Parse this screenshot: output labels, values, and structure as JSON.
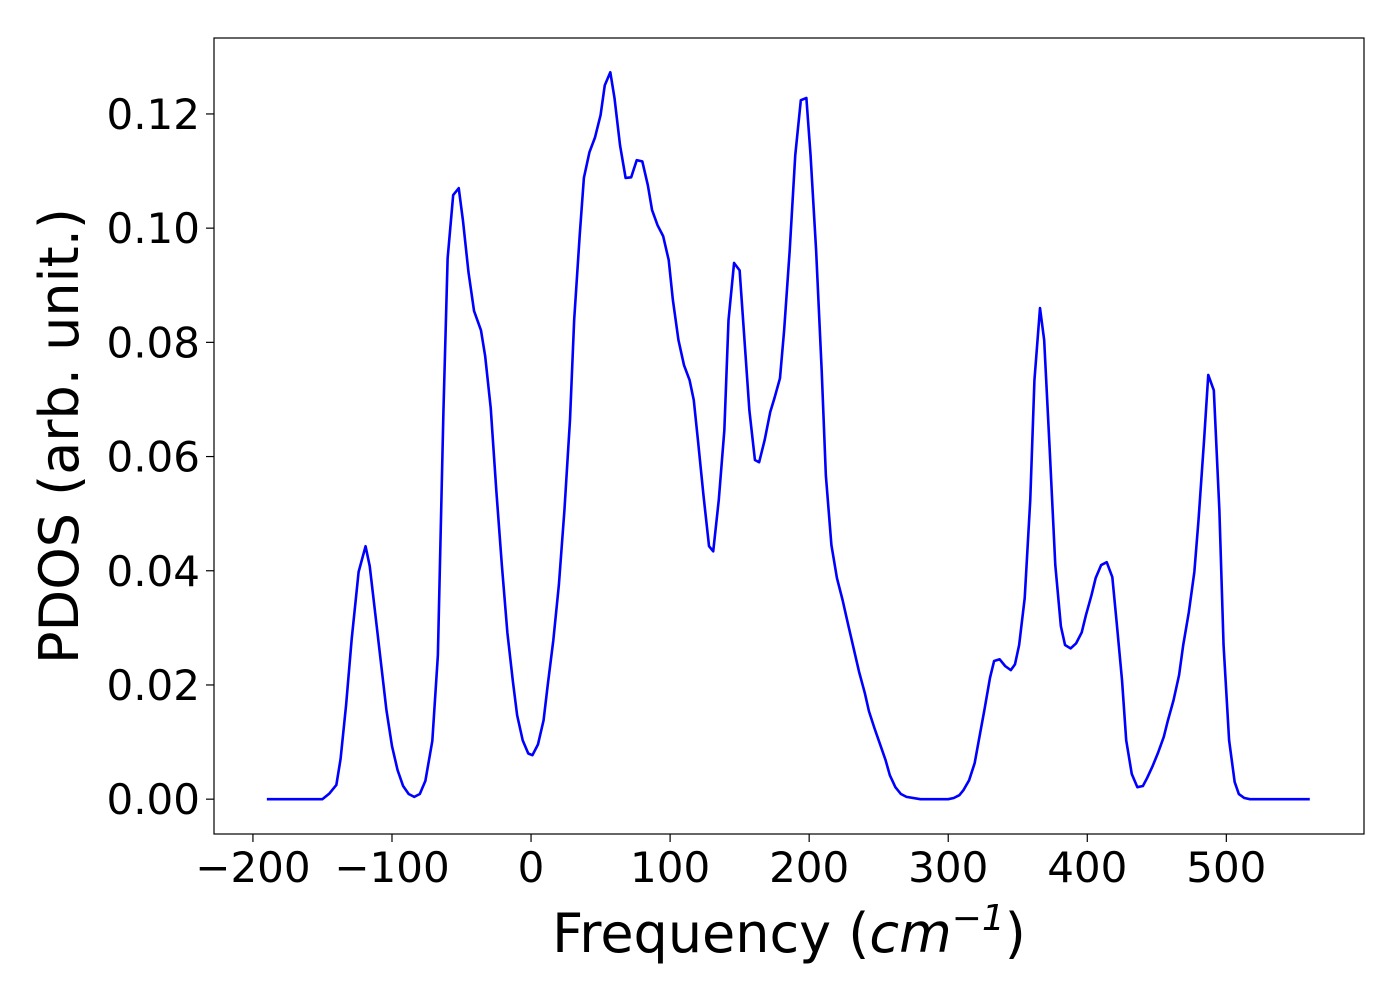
{
  "chart_data": {
    "type": "line",
    "xlabel": {
      "text": "Frequency (",
      "math": "cm",
      "sup": "−1",
      "close": ")"
    },
    "ylabel": "PDOS (arb. unit.)",
    "color": "#0000ff",
    "x": [
      -190,
      -170,
      -150,
      -145,
      -140,
      -137,
      -133,
      -129,
      -124,
      -119,
      -116,
      -112,
      -108,
      -104,
      -100,
      -96,
      -92,
      -88,
      -84,
      -80,
      -76,
      -71,
      -67,
      -63,
      -60,
      -56,
      -52,
      -49,
      -45,
      -41,
      -36,
      -33,
      -29,
      -25,
      -21,
      -17,
      -13,
      -10,
      -6,
      -2,
      1,
      5,
      9,
      12,
      16,
      20,
      24,
      28,
      31,
      35,
      38,
      42,
      46,
      50,
      53,
      57,
      60,
      64,
      68,
      72,
      76,
      80,
      84,
      87,
      91,
      95,
      99,
      102,
      106,
      110,
      114,
      117,
      120,
      124,
      128,
      131,
      135,
      139,
      142,
      146,
      150,
      153,
      157,
      161,
      164,
      168,
      172,
      175,
      179,
      182,
      186,
      190,
      194,
      198,
      201,
      205,
      209,
      212,
      216,
      220,
      224,
      228,
      232,
      236,
      240,
      243,
      247,
      251,
      255,
      258,
      262,
      266,
      270,
      280,
      290,
      300,
      304,
      308,
      311,
      315,
      319,
      322,
      326,
      330,
      333,
      337,
      341,
      345,
      348,
      351,
      355,
      359,
      362,
      366,
      369,
      373,
      377,
      381,
      384,
      388,
      392,
      396,
      399,
      403,
      406,
      410,
      414,
      418,
      421,
      425,
      428,
      432,
      436,
      440,
      443,
      447,
      451,
      455,
      458,
      462,
      466,
      469,
      473,
      477,
      480,
      484,
      487,
      491,
      495,
      498,
      502,
      506,
      509,
      513,
      517,
      530,
      545,
      560
    ],
    "values": [
      0,
      0,
      0,
      0.001,
      0.0025,
      0.007,
      0.0165,
      0.028,
      0.0398,
      0.0443,
      0.0408,
      0.0324,
      0.024,
      0.0156,
      0.0093,
      0.0051,
      0.0023,
      0.0009,
      0.0004,
      0.0009,
      0.0032,
      0.0102,
      0.0252,
      0.068,
      0.0947,
      0.1058,
      0.107,
      0.1014,
      0.0923,
      0.0855,
      0.0821,
      0.0776,
      0.0685,
      0.0541,
      0.041,
      0.0291,
      0.0205,
      0.0147,
      0.0103,
      0.008,
      0.0077,
      0.0096,
      0.0138,
      0.02,
      0.0278,
      0.0375,
      0.0506,
      0.0664,
      0.0839,
      0.0988,
      0.1088,
      0.1133,
      0.1159,
      0.1198,
      0.125,
      0.1273,
      0.1228,
      0.1145,
      0.1088,
      0.1089,
      0.1119,
      0.1117,
      0.1075,
      0.1032,
      0.1005,
      0.0986,
      0.0944,
      0.0874,
      0.0804,
      0.076,
      0.0734,
      0.0699,
      0.0629,
      0.0532,
      0.0443,
      0.0434,
      0.0524,
      0.0646,
      0.0839,
      0.0939,
      0.0926,
      0.0821,
      0.0681,
      0.0594,
      0.059,
      0.0629,
      0.0678,
      0.0702,
      0.0737,
      0.0821,
      0.0961,
      0.1128,
      0.1224,
      0.1228,
      0.1128,
      0.0961,
      0.0751,
      0.0567,
      0.0445,
      0.0387,
      0.0349,
      0.0306,
      0.0264,
      0.0222,
      0.0186,
      0.0154,
      0.0124,
      0.0096,
      0.0068,
      0.0042,
      0.0021,
      0.0009,
      0.0004,
      0,
      0,
      0,
      0.0002,
      0.0007,
      0.0016,
      0.0033,
      0.0063,
      0.0103,
      0.0156,
      0.0212,
      0.0242,
      0.0245,
      0.0233,
      0.0226,
      0.0236,
      0.027,
      0.0352,
      0.0524,
      0.0734,
      0.086,
      0.0804,
      0.0611,
      0.041,
      0.0303,
      0.027,
      0.0264,
      0.0273,
      0.0292,
      0.0322,
      0.0357,
      0.0387,
      0.041,
      0.0415,
      0.0389,
      0.0313,
      0.0208,
      0.0103,
      0.0044,
      0.0021,
      0.0023,
      0.0037,
      0.0058,
      0.0082,
      0.0109,
      0.0138,
      0.0173,
      0.0217,
      0.027,
      0.0327,
      0.0398,
      0.0489,
      0.0629,
      0.0743,
      0.0716,
      0.0506,
      0.027,
      0.0103,
      0.003,
      0.0009,
      0.0002,
      0,
      0,
      0,
      0
    ],
    "xlim": [
      -228,
      599
    ],
    "ylim": [
      -0.0061,
      0.1333
    ],
    "xticks": [
      {
        "value": -200,
        "label": "−200"
      },
      {
        "value": -100,
        "label": "−100"
      },
      0,
      100,
      200,
      300,
      400,
      500
    ],
    "yticks": [
      {
        "value": 0,
        "label": "0.00"
      },
      {
        "value": 0.02,
        "label": "0.02"
      },
      {
        "value": 0.04,
        "label": "0.04"
      },
      {
        "value": 0.06,
        "label": "0.06"
      },
      {
        "value": 0.08,
        "label": "0.08"
      },
      {
        "value": 0.1,
        "label": "0.10"
      },
      {
        "value": 0.12,
        "label": "0.12"
      }
    ]
  }
}
